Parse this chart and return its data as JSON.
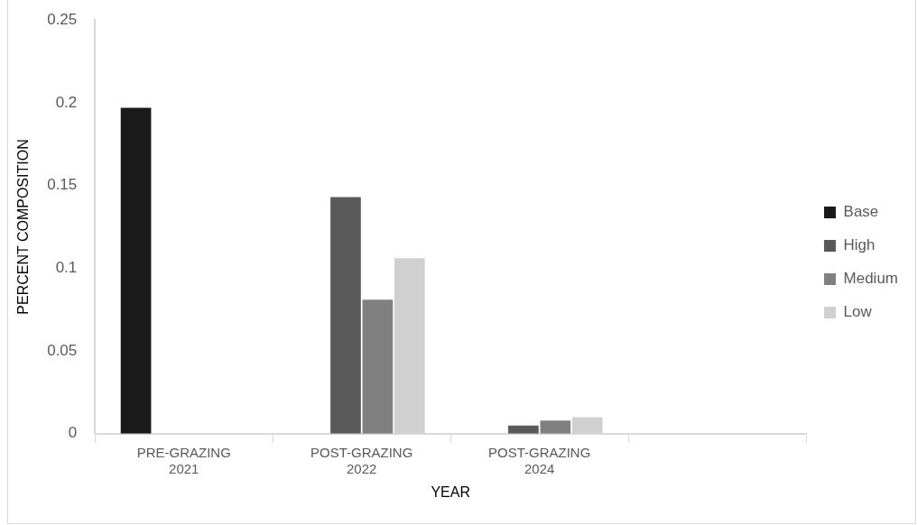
{
  "chart_data": {
    "type": "bar",
    "xlabel": "YEAR",
    "ylabel": "PERCENT COMPOSITION",
    "categories": [
      "PRE-GRAZING 2021",
      "POST-GRAZING 2022",
      "POST-GRAZING 2024",
      null
    ],
    "series": [
      {
        "name": "Base",
        "color": "#1a1a1a",
        "values": [
          0.197,
          null,
          null,
          null
        ]
      },
      {
        "name": "High",
        "color": "#595959",
        "values": [
          null,
          0.143,
          0.005,
          null
        ]
      },
      {
        "name": "Medium",
        "color": "#808080",
        "values": [
          null,
          0.081,
          0.008,
          null
        ]
      },
      {
        "name": "Low",
        "color": "#d0d0d0",
        "values": [
          null,
          0.106,
          0.01,
          null
        ]
      }
    ],
    "ylim": [
      0,
      0.25
    ],
    "yticks": [
      0,
      0.05,
      0.1,
      0.15,
      0.2,
      0.25
    ],
    "grid": false,
    "legend": "right"
  }
}
